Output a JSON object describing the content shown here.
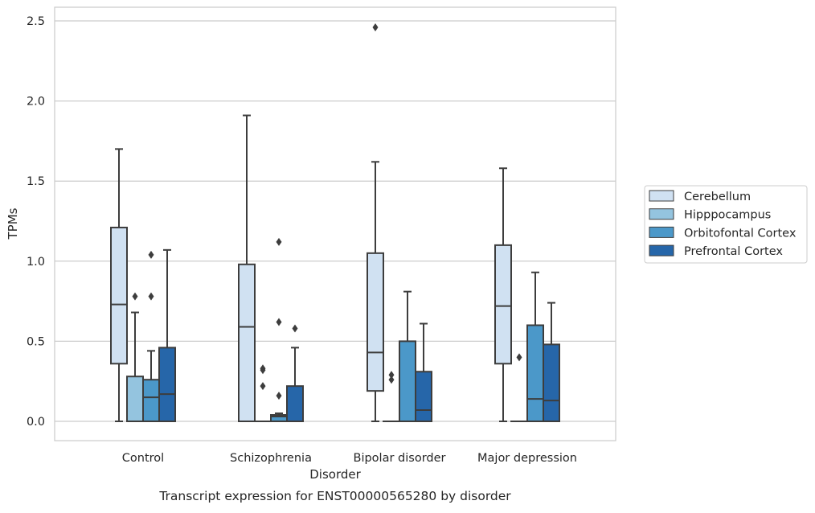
{
  "chart_data": {
    "type": "box",
    "caption": "Transcript expression for ENST00000565280 by disorder",
    "xlabel": "Disorder",
    "ylabel": "TPMs",
    "ylim": [
      -0.12,
      2.59
    ],
    "yticks": [
      "0.0",
      "0.5",
      "1.0",
      "1.5",
      "2.0",
      "2.5"
    ],
    "ytick_values": [
      0,
      0.5,
      1.0,
      1.5,
      2.0,
      2.5
    ],
    "grid": true,
    "legend_position": "right",
    "categories": [
      "Control",
      "Schizophrenia",
      "Bipolar disorder",
      "Major depression"
    ],
    "series": [
      {
        "name": "Cerebellum",
        "color": "#d0e1f2",
        "boxes": [
          {
            "whislo": 0.0,
            "q1": 0.36,
            "med": 0.73,
            "q3": 1.21,
            "whishi": 1.7,
            "fliers": []
          },
          {
            "whislo": 0.0,
            "q1": 0.0,
            "med": 0.59,
            "q3": 0.98,
            "whishi": 1.91,
            "fliers": []
          },
          {
            "whislo": 0.0,
            "q1": 0.19,
            "med": 0.43,
            "q3": 1.05,
            "whishi": 1.62,
            "fliers": [
              2.46
            ]
          },
          {
            "whislo": 0.0,
            "q1": 0.36,
            "med": 0.72,
            "q3": 1.1,
            "whishi": 1.58,
            "fliers": []
          }
        ]
      },
      {
        "name": "Hipppocampus",
        "color": "#94c4df",
        "boxes": [
          {
            "whislo": 0.0,
            "q1": 0.0,
            "med": 0.0,
            "q3": 0.28,
            "whishi": 0.68,
            "fliers": [
              0.78
            ]
          },
          {
            "whislo": 0.0,
            "q1": 0.0,
            "med": 0.0,
            "q3": 0.0,
            "whishi": 0.0,
            "fliers": [
              0.22,
              0.32,
              0.33
            ]
          },
          {
            "whislo": 0.0,
            "q1": 0.0,
            "med": 0.0,
            "q3": 0.0,
            "whishi": 0.0,
            "fliers": [
              0.26,
              0.29
            ]
          },
          {
            "whislo": 0.0,
            "q1": 0.0,
            "med": 0.0,
            "q3": 0.0,
            "whishi": 0.0,
            "fliers": [
              0.4
            ]
          }
        ]
      },
      {
        "name": "Orbitofontal Cortex",
        "color": "#4b98c9",
        "boxes": [
          {
            "whislo": 0.0,
            "q1": 0.0,
            "med": 0.15,
            "q3": 0.26,
            "whishi": 0.44,
            "fliers": [
              0.78,
              1.04
            ]
          },
          {
            "whislo": 0.0,
            "q1": 0.0,
            "med": 0.03,
            "q3": 0.04,
            "whishi": 0.05,
            "fliers": [
              0.16,
              0.62,
              1.12
            ]
          },
          {
            "whislo": 0.0,
            "q1": 0.0,
            "med": 0.0,
            "q3": 0.5,
            "whishi": 0.81,
            "fliers": []
          },
          {
            "whislo": 0.0,
            "q1": 0.0,
            "med": 0.14,
            "q3": 0.6,
            "whishi": 0.93,
            "fliers": []
          }
        ]
      },
      {
        "name": "Prefrontal Cortex",
        "color": "#2666a9",
        "boxes": [
          {
            "whislo": 0.0,
            "q1": 0.0,
            "med": 0.17,
            "q3": 0.46,
            "whishi": 1.07,
            "fliers": []
          },
          {
            "whislo": 0.0,
            "q1": 0.0,
            "med": 0.0,
            "q3": 0.22,
            "whishi": 0.46,
            "fliers": [
              0.58
            ]
          },
          {
            "whislo": 0.0,
            "q1": 0.0,
            "med": 0.07,
            "q3": 0.31,
            "whishi": 0.61,
            "fliers": []
          },
          {
            "whislo": 0.0,
            "q1": 0.0,
            "med": 0.13,
            "q3": 0.48,
            "whishi": 0.74,
            "fliers": []
          }
        ]
      }
    ]
  }
}
